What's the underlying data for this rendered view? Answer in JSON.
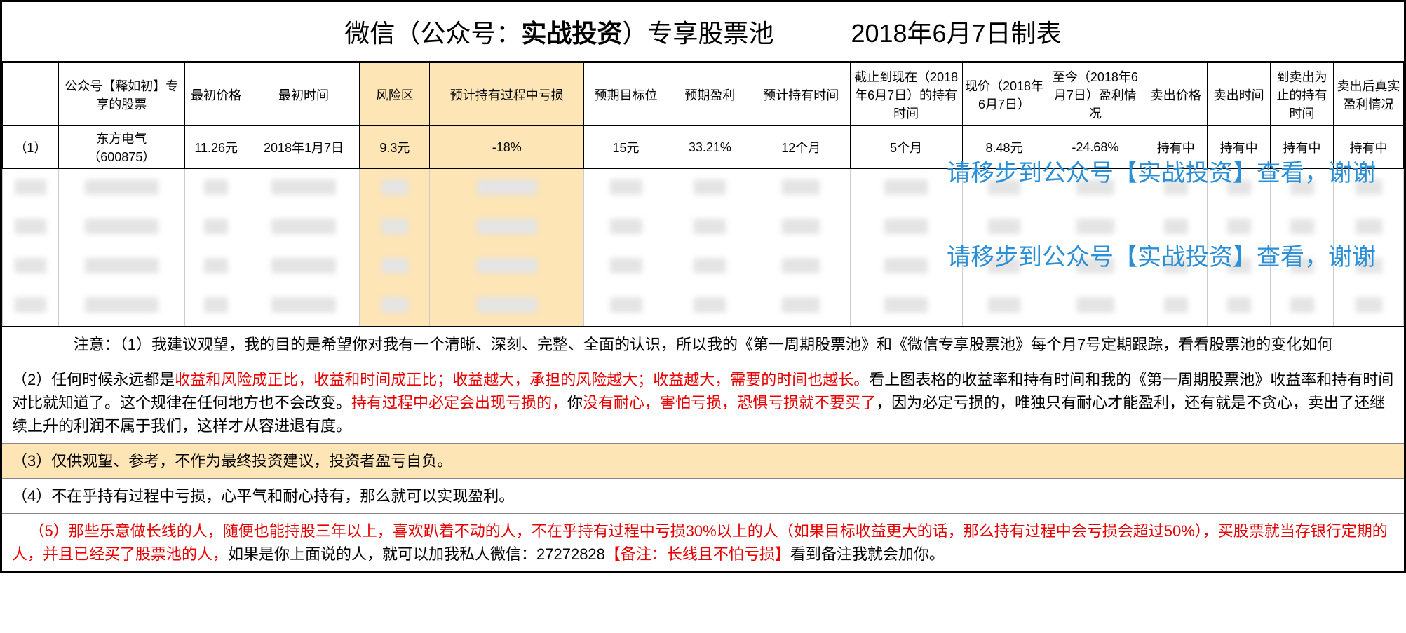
{
  "title": {
    "prefix": "微信（公众号：",
    "bold": "实战投资",
    "suffix": "）专享股票池",
    "date": "2018年6月7日制表"
  },
  "headers": [
    "",
    "公众号【释如初】专享的股票",
    "最初价格",
    "最初时间",
    "风险区",
    "预计持有过程中亏损",
    "预期目标位",
    "预期盈利",
    "预计持有时间",
    "截止到现在（2018年6月7日）的持有时间",
    "现价（2018年6月7日）",
    "至今（2018年6月7日）盈利情况",
    "卖出价格",
    "卖出时间",
    "到卖出为止的持有时间",
    "卖出后真实盈利情况"
  ],
  "highlight_cols": [
    4,
    5
  ],
  "row1": {
    "idx": "（1）",
    "name_top": "东方电气",
    "name_bot": "（600875）",
    "price0": "11.26元",
    "time0": "2018年1月7日",
    "risk": "9.3元",
    "loss": "-18%",
    "target": "15元",
    "profit": "33.21%",
    "hold": "12个月",
    "held": "5个月",
    "now": "8.48元",
    "pl": "-24.68%",
    "s1": "持有中",
    "s2": "持有中",
    "s3": "持有中",
    "s4": "持有中"
  },
  "overlay_text": "请移步到公众号【实战投资】查看，谢谢",
  "notes": {
    "n1": "注意：（1）我建议观望，我的目的是希望你对我有一个清晰、深刻、完整、全面的认识，所以我的《第一周期股票池》和《微信专享股票池》每个月7号定期跟踪，看看股票池的变化如何",
    "n2a": "（2）任何时候永远都是",
    "n2b": "收益和风险成正比，收益和时间成正比；收益越大，承担的风险越大；收益越大，需要的时间也越长。",
    "n2c": "看上图表格的收益率和持有时间和我的《第一周期股票池》收益率和持有时间对比就知道了。这个规律在任何地方也不会改变。",
    "n2d": "持有过程中必定会出现亏损的，",
    "n2e": "你",
    "n2f": "没有耐心，害怕亏损，恐惧亏损就不要买了",
    "n2g": "，因为必定亏损的，唯独只有耐心才能盈利，还有就是不贪心，卖出了还继续上升的利润不属于我们，这样才从容进退有度。",
    "n3": "（3）仅供观望、参考，不作为最终投资建议，投资者盈亏自负。",
    "n4": "（4）不在乎持有过程中亏损，心平气和耐心持有，那么就可以实现盈利。",
    "n5a": "（5）那些乐意做长线的人，随便也能持股三年以上，喜欢趴着不动的人，不在乎持有过程中亏损30%以上的人（如果目标收益更大的话，那么持有过程中会亏损会超过50%），买股票就当存银行定期的人，并且已经买了股票池的人，",
    "n5b": "如果是你上面说的人，就可以加我私人微信：27272828",
    "n5c": "【备注：长线且不怕亏损】",
    "n5d": "看到备注我就会加你。"
  },
  "colors": {
    "highlight": "#fde5b6",
    "red": "#e60000",
    "blue": "#2a8fd6"
  }
}
